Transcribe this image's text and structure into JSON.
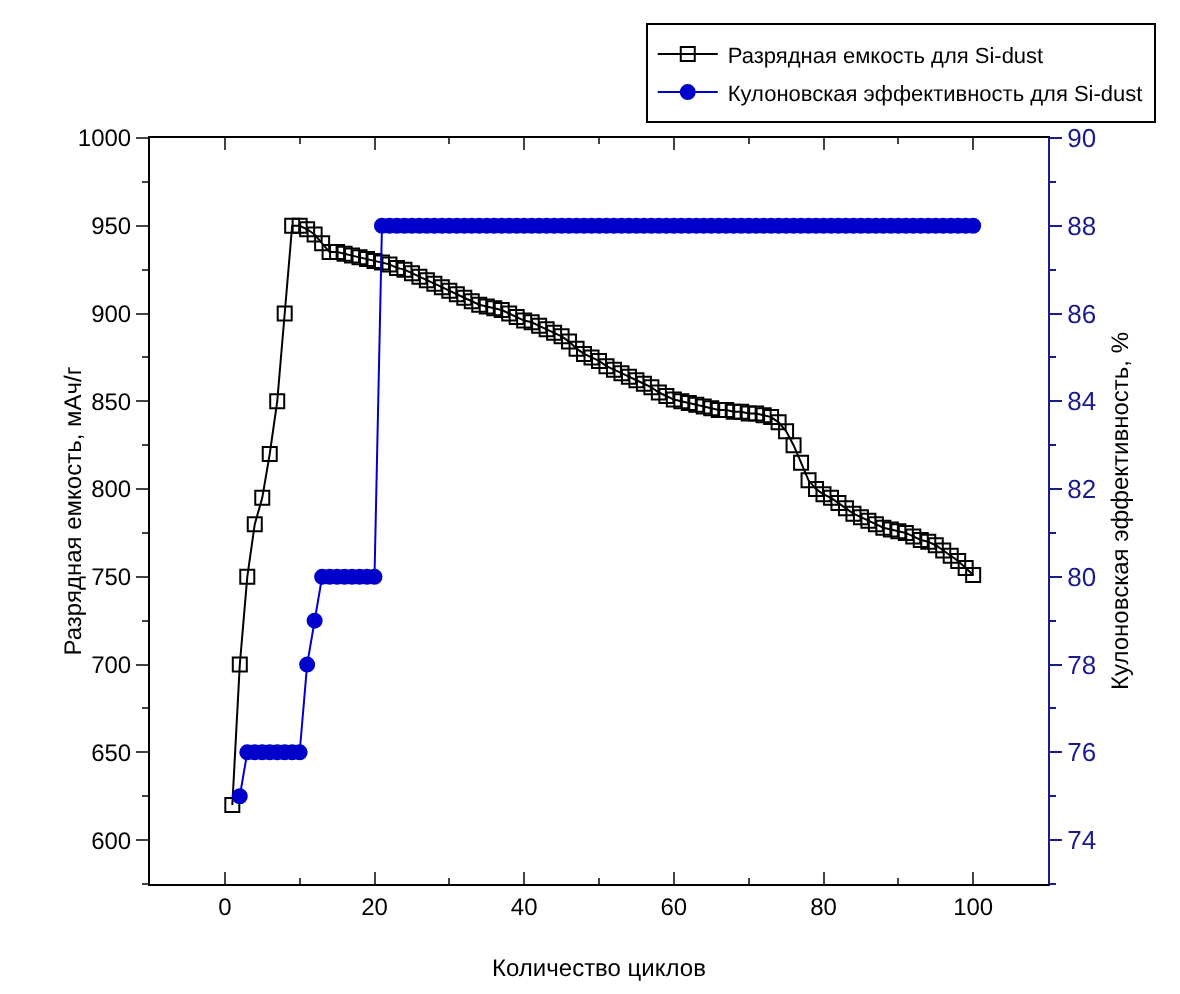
{
  "chart_data": {
    "type": "line",
    "xlabel": "Количество циклов",
    "ylabel": "Разрядная емкость, мАч/г",
    "y2label": "Кулоновская эффективность, %",
    "xlim": [
      -10,
      110
    ],
    "xticks": [
      0,
      20,
      40,
      60,
      80,
      100
    ],
    "ylim": [
      575,
      1000
    ],
    "yticks": [
      600,
      650,
      700,
      750,
      800,
      850,
      900,
      950,
      1000
    ],
    "y2lim": [
      73,
      90
    ],
    "y2ticks": [
      74,
      76,
      78,
      80,
      82,
      84,
      86,
      88,
      90
    ],
    "grid": false,
    "legend": "top right",
    "series": [
      {
        "name": "Разрядная емкость для Si-dust",
        "color": "#000000",
        "marker": "square",
        "line_style": "solid",
        "x": [
          1,
          2,
          3,
          4,
          5,
          6,
          7,
          8,
          9,
          10,
          11,
          12,
          13,
          14,
          15,
          16,
          17,
          18,
          19,
          20,
          21,
          22,
          23,
          24,
          25,
          26,
          27,
          28,
          29,
          30,
          31,
          32,
          33,
          34,
          35,
          36,
          37,
          38,
          39,
          40,
          41,
          42,
          43,
          44,
          45,
          46,
          47,
          48,
          49,
          50,
          51,
          52,
          53,
          54,
          55,
          56,
          57,
          58,
          59,
          60,
          61,
          62,
          63,
          64,
          65,
          66,
          67,
          68,
          69,
          70,
          71,
          72,
          73,
          74,
          75,
          76,
          77,
          78,
          79,
          80,
          81,
          82,
          83,
          84,
          85,
          86,
          87,
          88,
          89,
          90,
          91,
          92,
          93,
          94,
          95,
          96,
          97,
          98,
          99,
          100
        ],
        "values": [
          620,
          700,
          750,
          780,
          795,
          820,
          850,
          900,
          950,
          950,
          948,
          945,
          940,
          935,
          935,
          934,
          933,
          932,
          931,
          930,
          929,
          928,
          926,
          925,
          923,
          921,
          919,
          917,
          915,
          913,
          911,
          909,
          907,
          905,
          904,
          903,
          902,
          900,
          898,
          896,
          895,
          893,
          891,
          889,
          887,
          884,
          880,
          877,
          875,
          873,
          870,
          868,
          866,
          864,
          862,
          860,
          858,
          855,
          853,
          851,
          850,
          849,
          848,
          847,
          846,
          845,
          845,
          844,
          844,
          843,
          843,
          842,
          841,
          838,
          833,
          825,
          815,
          805,
          800,
          797,
          795,
          792,
          789,
          786,
          784,
          782,
          780,
          778,
          777,
          776,
          775,
          773,
          771,
          770,
          768,
          765,
          762,
          759,
          755,
          751
        ]
      },
      {
        "name": "Кулоновская эффективность для Si-dust",
        "color": "#0000cc",
        "marker": "circle",
        "line_style": "solid",
        "axis": "y2",
        "x": [
          2,
          3,
          4,
          5,
          6,
          7,
          8,
          9,
          10,
          11,
          12,
          13,
          14,
          15,
          16,
          17,
          18,
          19,
          20,
          21,
          22,
          23,
          24,
          25,
          26,
          27,
          28,
          29,
          30,
          31,
          32,
          33,
          34,
          35,
          36,
          37,
          38,
          39,
          40,
          41,
          42,
          43,
          44,
          45,
          46,
          47,
          48,
          49,
          50,
          51,
          52,
          53,
          54,
          55,
          56,
          57,
          58,
          59,
          60,
          61,
          62,
          63,
          64,
          65,
          66,
          67,
          68,
          69,
          70,
          71,
          72,
          73,
          74,
          75,
          76,
          77,
          78,
          79,
          80,
          81,
          82,
          83,
          84,
          85,
          86,
          87,
          88,
          89,
          90,
          91,
          92,
          93,
          94,
          95,
          96,
          97,
          98,
          99,
          100
        ],
        "values": [
          75,
          76,
          76,
          76,
          76,
          76,
          76,
          76,
          76,
          78,
          79,
          80,
          80,
          80,
          80,
          80,
          80,
          80,
          80,
          88,
          88,
          88,
          88,
          88,
          88,
          88,
          88,
          88,
          88,
          88,
          88,
          88,
          88,
          88,
          88,
          88,
          88,
          88,
          88,
          88,
          88,
          88,
          88,
          88,
          88,
          88,
          88,
          88,
          88,
          88,
          88,
          88,
          88,
          88,
          88,
          88,
          88,
          88,
          88,
          88,
          88,
          88,
          88,
          88,
          88,
          88,
          88,
          88,
          88,
          88,
          88,
          88,
          88,
          88,
          88,
          88,
          88,
          88,
          88,
          88,
          88,
          88,
          88,
          88,
          88,
          88,
          88,
          88,
          88,
          88,
          88,
          88,
          88,
          88,
          88,
          88,
          88,
          88,
          88
        ]
      }
    ]
  }
}
